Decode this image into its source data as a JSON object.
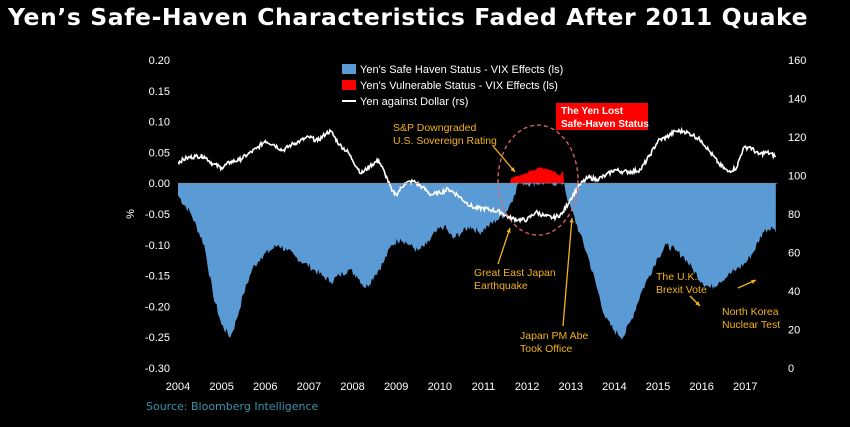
{
  "title": "Yen’s Safe-Haven Characteristics Faded After 2011 Quake",
  "source": "Source: Bloomberg Intelligence",
  "colors": {
    "safe_haven": "#5b9bd5",
    "vulnerable": "#ff0000",
    "yen_line": "#ffffff",
    "annotation": "#f3b21a",
    "background": "#000000",
    "source_text": "#3a93a8"
  },
  "chart_data": {
    "type": "area",
    "title": "Yen’s Safe-Haven Characteristics Faded After 2011 Quake",
    "ylabel": "%",
    "ylim": [
      -0.3,
      0.2
    ],
    "y2lim": [
      0,
      160
    ],
    "yticks": [
      "0.20",
      "0.15",
      "0.10",
      "0.05",
      "0.00",
      "-0.05",
      "-0.10",
      "-0.15",
      "-0.20",
      "-0.25",
      "-0.30"
    ],
    "y2ticks": [
      "160",
      "140",
      "120",
      "100",
      "80",
      "60",
      "40",
      "20",
      "0"
    ],
    "xticks": [
      "2004",
      "2005",
      "2006",
      "2007",
      "2008",
      "2009",
      "2010",
      "2011",
      "2012",
      "2013",
      "2014",
      "2015",
      "2016",
      "2017"
    ],
    "legend": [
      {
        "label": "Yen's Safe Haven Status - VIX Effects (ls)",
        "color": "#5b9bd5",
        "kind": "box"
      },
      {
        "label": "Yen's Vulnerable Status - VIX Effects (ls)",
        "color": "#ff0000",
        "kind": "box"
      },
      {
        "label": "Yen against Dollar (rs)",
        "color": "#ffffff",
        "kind": "line"
      }
    ],
    "series": [
      {
        "name": "Yen's Safe Haven Status - VIX Effects (ls)",
        "axis": "left",
        "points": [
          [
            2004.0,
            -0.02
          ],
          [
            2004.3,
            -0.05
          ],
          [
            2004.6,
            -0.1
          ],
          [
            2004.8,
            -0.18
          ],
          [
            2005.0,
            -0.23
          ],
          [
            2005.2,
            -0.25
          ],
          [
            2005.35,
            -0.22
          ],
          [
            2005.5,
            -0.18
          ],
          [
            2005.7,
            -0.14
          ],
          [
            2005.9,
            -0.12
          ],
          [
            2006.1,
            -0.11
          ],
          [
            2006.3,
            -0.1
          ],
          [
            2006.5,
            -0.11
          ],
          [
            2006.7,
            -0.12
          ],
          [
            2006.9,
            -0.13
          ],
          [
            2007.1,
            -0.14
          ],
          [
            2007.3,
            -0.15
          ],
          [
            2007.5,
            -0.16
          ],
          [
            2007.7,
            -0.15
          ],
          [
            2007.9,
            -0.14
          ],
          [
            2008.1,
            -0.15
          ],
          [
            2008.3,
            -0.17
          ],
          [
            2008.5,
            -0.15
          ],
          [
            2008.7,
            -0.13
          ],
          [
            2008.9,
            -0.1
          ],
          [
            2009.1,
            -0.09
          ],
          [
            2009.3,
            -0.1
          ],
          [
            2009.5,
            -0.11
          ],
          [
            2009.7,
            -0.1
          ],
          [
            2009.9,
            -0.08
          ],
          [
            2010.1,
            -0.07
          ],
          [
            2010.3,
            -0.09
          ],
          [
            2010.5,
            -0.08
          ],
          [
            2010.7,
            -0.07
          ],
          [
            2010.9,
            -0.08
          ],
          [
            2011.1,
            -0.07
          ],
          [
            2011.3,
            -0.06
          ],
          [
            2011.5,
            -0.05
          ],
          [
            2011.7,
            -0.02
          ],
          [
            2011.8,
            0.0
          ],
          [
            2012.85,
            0.0
          ],
          [
            2012.9,
            -0.02
          ],
          [
            2013.0,
            -0.04
          ],
          [
            2013.2,
            -0.08
          ],
          [
            2013.4,
            -0.12
          ],
          [
            2013.6,
            -0.17
          ],
          [
            2013.8,
            -0.22
          ],
          [
            2014.0,
            -0.24
          ],
          [
            2014.2,
            -0.25
          ],
          [
            2014.4,
            -0.22
          ],
          [
            2014.6,
            -0.18
          ],
          [
            2014.8,
            -0.15
          ],
          [
            2015.0,
            -0.12
          ],
          [
            2015.2,
            -0.1
          ],
          [
            2015.4,
            -0.11
          ],
          [
            2015.6,
            -0.12
          ],
          [
            2015.8,
            -0.14
          ],
          [
            2016.0,
            -0.16
          ],
          [
            2016.2,
            -0.17
          ],
          [
            2016.4,
            -0.16
          ],
          [
            2016.6,
            -0.15
          ],
          [
            2016.8,
            -0.14
          ],
          [
            2017.0,
            -0.13
          ],
          [
            2017.2,
            -0.11
          ],
          [
            2017.4,
            -0.08
          ],
          [
            2017.6,
            -0.07
          ],
          [
            2017.7,
            -0.08
          ]
        ]
      },
      {
        "name": "Yen's Vulnerable Status - VIX Effects (ls)",
        "axis": "left",
        "points": [
          [
            2011.6,
            0.0
          ],
          [
            2011.65,
            0.01
          ],
          [
            2011.8,
            0.012
          ],
          [
            2011.95,
            0.015
          ],
          [
            2012.1,
            0.02
          ],
          [
            2012.3,
            0.025
          ],
          [
            2012.5,
            0.022
          ],
          [
            2012.65,
            0.018
          ],
          [
            2012.75,
            0.012
          ],
          [
            2012.82,
            0.02
          ],
          [
            2012.85,
            0.0
          ]
        ]
      },
      {
        "name": "Yen against Dollar (rs)",
        "axis": "right",
        "points": [
          [
            2004.0,
            107
          ],
          [
            2004.2,
            109
          ],
          [
            2004.4,
            110
          ],
          [
            2004.6,
            110
          ],
          [
            2004.8,
            106
          ],
          [
            2005.0,
            104
          ],
          [
            2005.2,
            107
          ],
          [
            2005.4,
            108
          ],
          [
            2005.6,
            111
          ],
          [
            2005.8,
            114
          ],
          [
            2006.0,
            118
          ],
          [
            2006.2,
            116
          ],
          [
            2006.4,
            113
          ],
          [
            2006.6,
            116
          ],
          [
            2006.8,
            118
          ],
          [
            2007.0,
            120
          ],
          [
            2007.2,
            118
          ],
          [
            2007.4,
            122
          ],
          [
            2007.5,
            123
          ],
          [
            2007.7,
            116
          ],
          [
            2007.9,
            112
          ],
          [
            2008.0,
            108
          ],
          [
            2008.2,
            101
          ],
          [
            2008.4,
            105
          ],
          [
            2008.6,
            108
          ],
          [
            2008.8,
            98
          ],
          [
            2008.9,
            92
          ],
          [
            2009.0,
            90
          ],
          [
            2009.2,
            96
          ],
          [
            2009.4,
            97
          ],
          [
            2009.6,
            94
          ],
          [
            2009.8,
            90
          ],
          [
            2010.0,
            91
          ],
          [
            2010.2,
            93
          ],
          [
            2010.4,
            90
          ],
          [
            2010.6,
            86
          ],
          [
            2010.8,
            83
          ],
          [
            2011.0,
            83
          ],
          [
            2011.2,
            82
          ],
          [
            2011.4,
            81
          ],
          [
            2011.6,
            78
          ],
          [
            2011.8,
            77
          ],
          [
            2012.0,
            77
          ],
          [
            2012.2,
            81
          ],
          [
            2012.4,
            79
          ],
          [
            2012.6,
            78
          ],
          [
            2012.8,
            80
          ],
          [
            2013.0,
            88
          ],
          [
            2013.2,
            95
          ],
          [
            2013.4,
            99
          ],
          [
            2013.6,
            98
          ],
          [
            2013.8,
            100
          ],
          [
            2014.0,
            103
          ],
          [
            2014.2,
            102
          ],
          [
            2014.4,
            102
          ],
          [
            2014.6,
            103
          ],
          [
            2014.8,
            110
          ],
          [
            2015.0,
            118
          ],
          [
            2015.2,
            120
          ],
          [
            2015.4,
            123
          ],
          [
            2015.6,
            123
          ],
          [
            2015.8,
            121
          ],
          [
            2016.0,
            118
          ],
          [
            2016.2,
            112
          ],
          [
            2016.4,
            106
          ],
          [
            2016.6,
            102
          ],
          [
            2016.8,
            104
          ],
          [
            2016.95,
            114
          ],
          [
            2017.1,
            115
          ],
          [
            2017.3,
            111
          ],
          [
            2017.5,
            112
          ],
          [
            2017.7,
            110
          ]
        ]
      }
    ],
    "annotations": [
      {
        "text": [
          "S&P Downgraded",
          "U.S. Sovereign Rating"
        ],
        "color": "#f3b21a",
        "x": 2011.6,
        "y": 0.0
      },
      {
        "text": [
          "The Yen Lost",
          "Safe-Haven Status"
        ],
        "color": "#ff0000",
        "x": 2012.3,
        "y": 0.025
      },
      {
        "text": [
          "Great East Japan",
          "Earthquake"
        ],
        "color": "#f3b21a",
        "x": 2011.2,
        "y": -0.06
      },
      {
        "text": [
          "Japan PM Abe",
          "Took Office"
        ],
        "color": "#f3b21a",
        "x": 2012.95,
        "y": -0.04
      },
      {
        "text": [
          "The U.K.",
          "Brexit Vote"
        ],
        "color": "#f3b21a",
        "x": 2016.5,
        "y": -0.16
      },
      {
        "text": [
          "North Korea",
          "Nuclear Test"
        ],
        "color": "#f3b21a",
        "x": 2017.65,
        "y": -0.1
      }
    ]
  }
}
